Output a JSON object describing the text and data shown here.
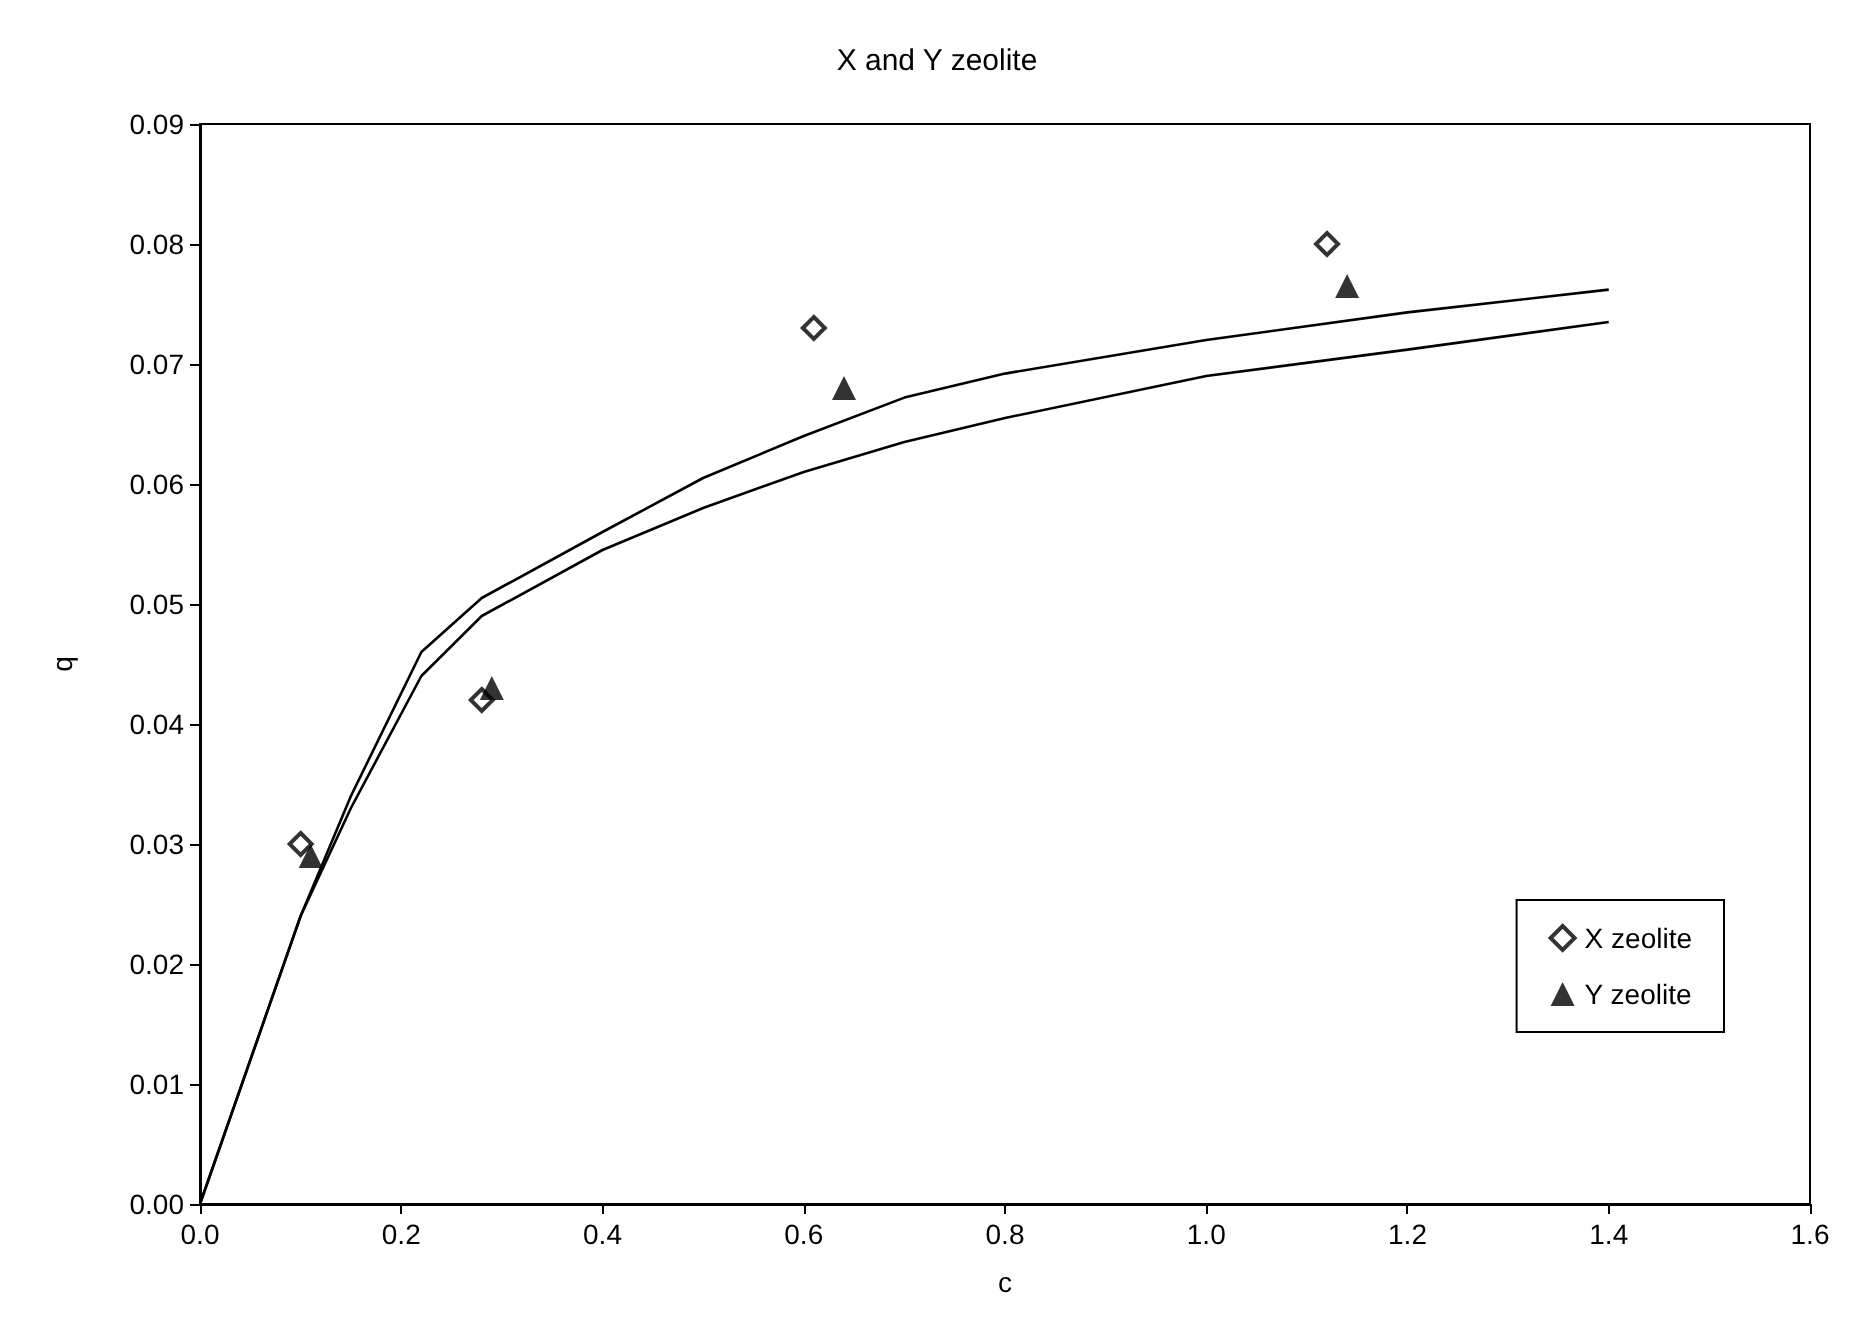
{
  "chart_data": {
    "type": "scatter",
    "title": "X and Y zeolite",
    "xlabel": "c",
    "ylabel": "q",
    "xlim": [
      0,
      1.6
    ],
    "xticks": [
      {
        "value": 0,
        "label": "0.0"
      },
      0.2,
      0.4,
      0.6,
      0.8,
      {
        "value": 1,
        "label": "1.0"
      },
      1.2,
      1.4,
      1.6
    ],
    "ylim": [
      0,
      0.09
    ],
    "yticks": [
      {
        "value": 0,
        "label": "0.00"
      },
      0.01,
      0.02,
      0.03,
      0.04,
      0.05,
      0.06,
      0.07,
      0.08,
      0.09
    ],
    "grid": false,
    "legend": "bottom right",
    "series": [
      {
        "name": "X zeolite",
        "color": "#000000",
        "marker": "diamond",
        "x": [
          0.1,
          0.28,
          0.61,
          1.12
        ],
        "values": [
          0.03,
          0.042,
          0.073,
          0.08
        ]
      },
      {
        "name": "Y zeolite",
        "color": "#000000",
        "marker": "triangle",
        "x": [
          0.11,
          0.29,
          0.64,
          1.14
        ],
        "values": [
          0.029,
          0.043,
          0.068,
          0.0765
        ]
      },
      {
        "type": "line",
        "color": "#000000",
        "marker": "none",
        "x": [
          0,
          0.1,
          0.15,
          0.22,
          0.28,
          0.4,
          0.5,
          0.6,
          0.7,
          0.8,
          1.0,
          1.2,
          1.4
        ],
        "values": [
          0,
          0.024,
          0.034,
          0.046,
          0.0505,
          0.056,
          0.0605,
          0.064,
          0.0672,
          0.0692,
          0.072,
          0.0743,
          0.0762
        ]
      },
      {
        "type": "line",
        "color": "#000000",
        "marker": "none",
        "x": [
          0,
          0.1,
          0.15,
          0.22,
          0.28,
          0.4,
          0.5,
          0.6,
          0.7,
          0.8,
          1.0,
          1.2,
          1.4
        ],
        "values": [
          0,
          0.024,
          0.033,
          0.044,
          0.049,
          0.0545,
          0.058,
          0.061,
          0.0635,
          0.0655,
          0.069,
          0.0712,
          0.0735
        ]
      }
    ]
  }
}
